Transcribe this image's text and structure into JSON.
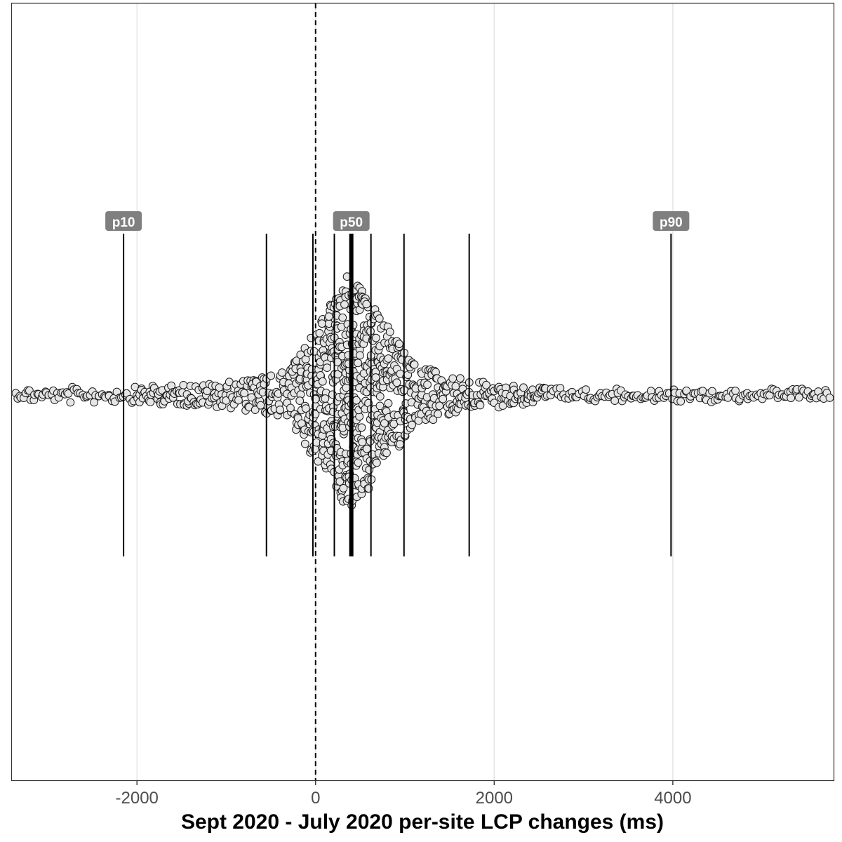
{
  "chart_data": {
    "type": "scatter",
    "style": "beeswarm",
    "xlabel": "Sept 2020 - July 2020 per-site LCP changes (ms)",
    "xlim": [
      -3400,
      5800
    ],
    "x_ticks": [
      -2000,
      0,
      2000,
      4000
    ],
    "x_tick_labels": [
      "-2000",
      "0",
      "2000",
      "4000"
    ],
    "grid": "vertical major gridlines",
    "zero_reference_line": {
      "x": 0,
      "style": "dashed"
    },
    "percentile_lines": [
      {
        "p": 10,
        "x": -2150,
        "label": "p10"
      },
      {
        "p": 20,
        "x": -550,
        "label": ""
      },
      {
        "p": 30,
        "x": -30,
        "label": ""
      },
      {
        "p": 40,
        "x": 210,
        "label": ""
      },
      {
        "p": 50,
        "x": 400,
        "label": "p50",
        "emphasis": true
      },
      {
        "p": 60,
        "x": 620,
        "label": ""
      },
      {
        "p": 70,
        "x": 990,
        "label": ""
      },
      {
        "p": 80,
        "x": 1720,
        "label": ""
      },
      {
        "p": 90,
        "x": 3980,
        "label": "p90"
      }
    ],
    "point_fill": "#e6e6e6",
    "point_stroke": "#1a1a1a",
    "label_box_color": "#7f7f7f"
  }
}
